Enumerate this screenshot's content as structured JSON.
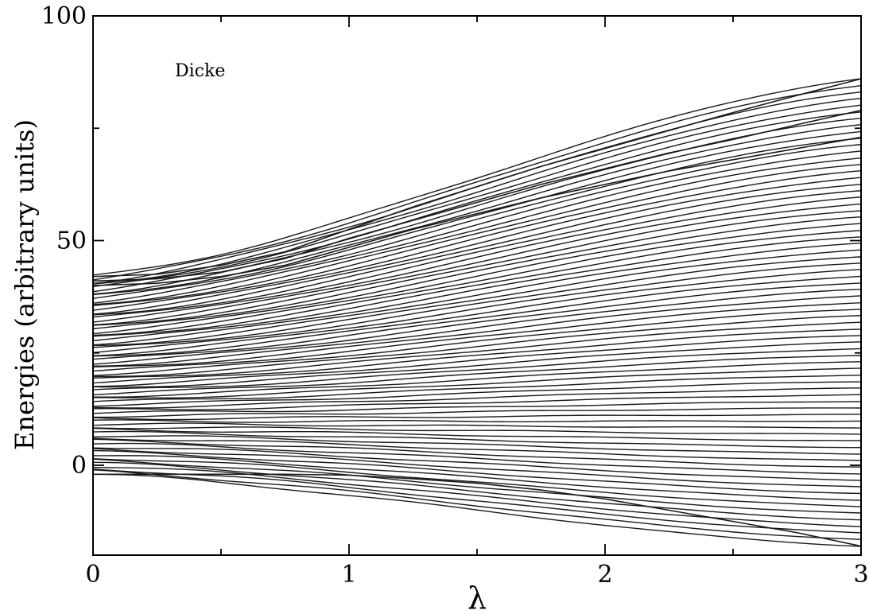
{
  "chart_data": {
    "type": "line",
    "title": "",
    "xlabel": "λ",
    "ylabel": "Energies (arbitrary units)",
    "annotation": "Dicke",
    "xlim": [
      0,
      3
    ],
    "ylim": [
      -20,
      100
    ],
    "x_ticks": [
      0,
      1,
      2,
      3
    ],
    "x_tick_labels": [
      "0",
      "1",
      "2",
      "3"
    ],
    "y_ticks": [
      0,
      50,
      100
    ],
    "y_tick_labels": [
      "0",
      "50",
      "100"
    ],
    "grid": false,
    "legend": "none",
    "line_color": "#1a1a1a",
    "x": [
      0,
      0.25,
      0.5,
      0.75,
      1.0,
      1.25,
      1.5,
      1.75,
      2.0,
      2.25,
      2.5,
      2.75,
      3.0
    ],
    "series_family": {
      "count": 72,
      "description_of_values": "Each series i (0..count-1) is an energy level E_i(λ); endpoints in data units",
      "E_at_lambda_0": {
        "min": -2,
        "max": 42
      },
      "E_at_lambda_3": {
        "min": -18,
        "max": 86
      }
    },
    "series_highlight": [
      {
        "values": [
          42,
          42.5,
          44.5,
          47.5,
          52.5,
          57.5,
          62,
          66.5,
          70.5,
          74.5,
          78.5,
          82.3,
          86
        ]
      },
      {
        "values": [
          41,
          41.5,
          43,
          46,
          50.5,
          54.5,
          58.5,
          62.5,
          66,
          69.5,
          72.5,
          75.8,
          79
        ]
      },
      {
        "values": [
          40,
          40.5,
          42,
          44.5,
          48.5,
          52.5,
          56,
          59.5,
          62.5,
          65.5,
          68,
          70.5,
          73
        ]
      },
      {
        "values": [
          -2,
          -2,
          -2,
          -2,
          -2.2,
          -3,
          -4,
          -5.5,
          -7.5,
          -10,
          -12.5,
          -15,
          -18
        ]
      }
    ]
  }
}
